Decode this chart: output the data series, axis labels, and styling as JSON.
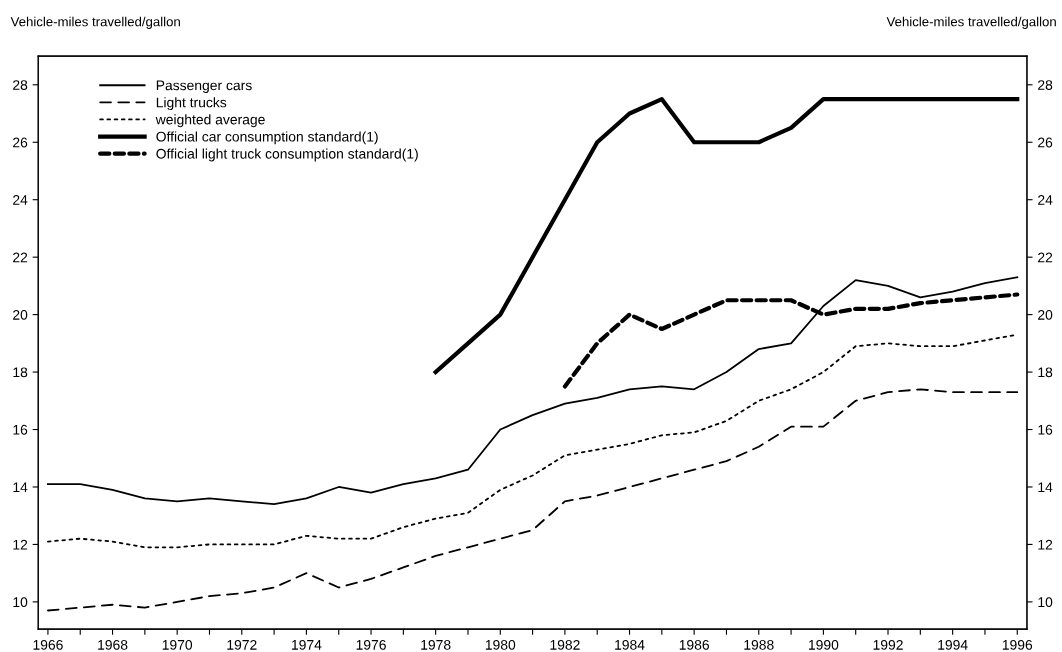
{
  "chart_data": {
    "type": "line",
    "ylabel": "Vehicle-miles travelled/gallon",
    "y2label": "Vehicle-miles travelled/gallon",
    "x": [
      1966,
      1967,
      1968,
      1969,
      1970,
      1971,
      1972,
      1973,
      1974,
      1975,
      1976,
      1977,
      1978,
      1979,
      1980,
      1981,
      1982,
      1983,
      1984,
      1985,
      1986,
      1987,
      1988,
      1989,
      1990,
      1991,
      1992,
      1993,
      1994,
      1995,
      1996
    ],
    "xlim": [
      1965.7,
      1996.3
    ],
    "xticks": [
      1966,
      {
        "value": 1967,
        "label": null
      },
      1968,
      {
        "value": 1969,
        "label": null
      },
      1970,
      {
        "value": 1971,
        "label": null
      },
      1972,
      {
        "value": 1973,
        "label": null
      },
      1974,
      {
        "value": 1975,
        "label": null
      },
      1976,
      {
        "value": 1977,
        "label": null
      },
      1978,
      {
        "value": 1979,
        "label": null
      },
      1980,
      {
        "value": 1981,
        "label": null
      },
      1982,
      {
        "value": 1983,
        "label": null
      },
      1984,
      {
        "value": 1985,
        "label": null
      },
      1986,
      {
        "value": 1987,
        "label": null
      },
      1988,
      {
        "value": 1989,
        "label": null
      },
      1990,
      {
        "value": 1991,
        "label": null
      },
      1992,
      {
        "value": 1993,
        "label": null
      },
      1994,
      {
        "value": 1995,
        "label": null
      },
      1996
    ],
    "ylim": [
      9.05,
      29
    ],
    "yticks": [
      10,
      12,
      14,
      16,
      18,
      20,
      22,
      24,
      26,
      28
    ],
    "y2lim": [
      9.05,
      29
    ],
    "y2ticks": [
      10,
      12,
      14,
      16,
      18,
      20,
      22,
      24,
      26,
      28
    ],
    "grid": false,
    "legend": "top left",
    "marker": "none",
    "series": [
      {
        "name": "Passenger cars",
        "color": "#000000",
        "line_style": "solid",
        "values": [
          14.1,
          14.1,
          13.9,
          13.6,
          13.5,
          13.6,
          13.5,
          13.4,
          13.6,
          14.0,
          13.8,
          14.1,
          14.3,
          14.6,
          16.0,
          16.5,
          16.9,
          17.1,
          17.4,
          17.5,
          17.4,
          18.0,
          18.8,
          19.0,
          20.3,
          21.2,
          21.0,
          20.6,
          20.8,
          21.1,
          21.3
        ]
      },
      {
        "name": "Light trucks",
        "color": "#000000",
        "line_style": "dashed",
        "values": [
          9.7,
          9.8,
          9.9,
          9.8,
          10.0,
          10.2,
          10.3,
          10.5,
          11.0,
          10.5,
          10.8,
          11.2,
          11.6,
          11.9,
          12.2,
          12.5,
          13.5,
          13.7,
          14.0,
          14.3,
          14.6,
          14.9,
          15.4,
          16.1,
          16.1,
          17.0,
          17.3,
          17.4,
          17.3,
          17.3,
          17.3
        ]
      },
      {
        "name": "weighted average",
        "color": "#000000",
        "line_style": "dotted",
        "values": [
          12.1,
          12.2,
          12.1,
          11.9,
          11.9,
          12.0,
          12.0,
          12.0,
          12.3,
          12.2,
          12.2,
          12.6,
          12.9,
          13.1,
          13.9,
          14.4,
          15.1,
          15.3,
          15.5,
          15.8,
          15.9,
          16.3,
          17.0,
          17.4,
          18.0,
          18.9,
          19.0,
          18.9,
          18.9,
          19.1,
          19.3
        ]
      },
      {
        "name": "Official car consumption standard(1)",
        "color": "#000000",
        "line_style": "solid",
        "values": [
          null,
          null,
          null,
          null,
          null,
          null,
          null,
          null,
          null,
          null,
          null,
          null,
          18,
          19,
          20,
          22,
          24,
          26,
          27,
          27.5,
          26,
          26,
          26,
          26.5,
          27.5,
          27.5,
          27.5,
          27.5,
          27.5,
          27.5,
          27.5
        ]
      },
      {
        "name": "Official light truck consumption standard(1)",
        "color": "#000000",
        "line_style": "dashed",
        "values": [
          null,
          null,
          null,
          null,
          null,
          null,
          null,
          null,
          null,
          null,
          null,
          null,
          null,
          null,
          null,
          null,
          17.5,
          19,
          20,
          19.5,
          20,
          20.5,
          20.5,
          20.5,
          20,
          20.2,
          20.2,
          20.4,
          20.5,
          20.6,
          20.7
        ]
      }
    ]
  }
}
